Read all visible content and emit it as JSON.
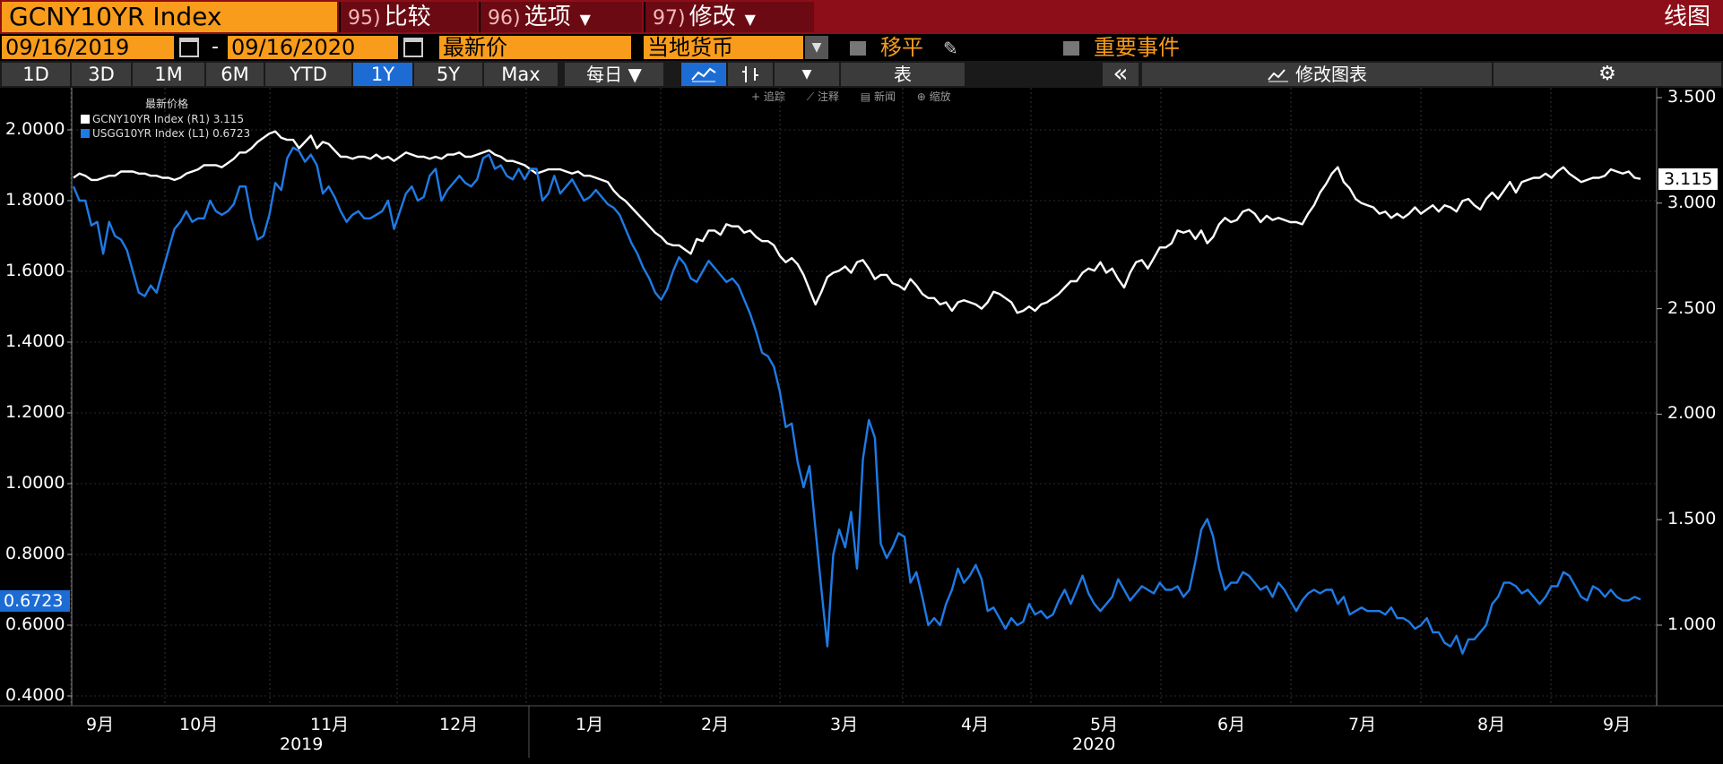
{
  "header": {
    "ticker": "GCNY10YR Index",
    "menus": [
      {
        "num": "95)",
        "label": "比较",
        "caret": ""
      },
      {
        "num": "96)",
        "label": "选项",
        "caret": "▼"
      },
      {
        "num": "97)",
        "label": "修改",
        "caret": "▼"
      }
    ],
    "view": "线图"
  },
  "controls": {
    "start_date": "09/16/2019",
    "dash": "-",
    "end_date": "09/16/2020",
    "field": "最新价",
    "currency": "当地货币",
    "shift": "移平",
    "events": "重要事件"
  },
  "toolbar": {
    "ranges": [
      "1D",
      "3D",
      "1M",
      "6M",
      "YTD",
      "1Y",
      "5Y",
      "Max"
    ],
    "active_range": "1Y",
    "period": "每日 ▼",
    "table": "表",
    "collapse": "«",
    "edit_chart": "修改图表",
    "mini_tools": [
      "追踪",
      "注释",
      "新闻",
      "缩放"
    ]
  },
  "legend": {
    "title": "最新价格",
    "items": [
      {
        "label": "GCNY10YR Index  (R1) 3.115",
        "color": "#ffffff"
      },
      {
        "label": "USGG10YR Index  (L1) 0.6723",
        "color": "#1e7be6"
      }
    ]
  },
  "colors": {
    "gcny": "#ffffff",
    "usgg": "#1e7be6",
    "accent": "#f99c1b",
    "header": "#8d0d18"
  },
  "chart_data": {
    "type": "line",
    "x_labels": [
      "9月",
      "10月",
      "11月",
      "12月",
      "1月",
      "2月",
      "3月",
      "4月",
      "5月",
      "6月",
      "7月",
      "8月",
      "9月"
    ],
    "year_labels": [
      "2019",
      "2020"
    ],
    "left_axis": {
      "ticks": [
        "2.0000",
        "1.8000",
        "1.6000",
        "1.4000",
        "1.2000",
        "1.0000",
        "0.8000",
        "0.6000",
        "0.4000"
      ],
      "range": [
        0.38,
        2.1
      ]
    },
    "right_axis": {
      "ticks": [
        "3.500",
        "3.000",
        "2.500",
        "2.000",
        "1.500",
        "1.000"
      ],
      "range": [
        0.75,
        3.55
      ]
    },
    "last_values": {
      "gcny": "3.115",
      "usgg": "0.6723"
    },
    "series": [
      {
        "name": "GCNY10YR Index",
        "axis": "right",
        "values": [
          3.12,
          3.14,
          3.13,
          3.11,
          3.11,
          3.12,
          3.13,
          3.13,
          3.15,
          3.15,
          3.15,
          3.14,
          3.14,
          3.13,
          3.13,
          3.12,
          3.12,
          3.11,
          3.12,
          3.14,
          3.15,
          3.16,
          3.18,
          3.18,
          3.18,
          3.17,
          3.19,
          3.21,
          3.24,
          3.24,
          3.26,
          3.29,
          3.31,
          3.33,
          3.34,
          3.31,
          3.3,
          3.3,
          3.26,
          3.29,
          3.32,
          3.26,
          3.29,
          3.28,
          3.25,
          3.22,
          3.22,
          3.21,
          3.22,
          3.22,
          3.21,
          3.23,
          3.21,
          3.22,
          3.2,
          3.22,
          3.24,
          3.23,
          3.22,
          3.22,
          3.21,
          3.22,
          3.21,
          3.23,
          3.23,
          3.24,
          3.22,
          3.22,
          3.23,
          3.24,
          3.25,
          3.23,
          3.22,
          3.2,
          3.2,
          3.19,
          3.18,
          3.16,
          3.14,
          3.15,
          3.16,
          3.16,
          3.16,
          3.15,
          3.14,
          3.15,
          3.13,
          3.13,
          3.12,
          3.11,
          3.1,
          3.06,
          3.03,
          3.01,
          2.98,
          2.95,
          2.92,
          2.89,
          2.86,
          2.84,
          2.81,
          2.8,
          2.8,
          2.78,
          2.76,
          2.83,
          2.82,
          2.87,
          2.87,
          2.85,
          2.9,
          2.89,
          2.89,
          2.86,
          2.87,
          2.84,
          2.82,
          2.82,
          2.8,
          2.75,
          2.72,
          2.74,
          2.71,
          2.66,
          2.59,
          2.52,
          2.58,
          2.65,
          2.67,
          2.68,
          2.7,
          2.67,
          2.72,
          2.73,
          2.69,
          2.64,
          2.66,
          2.66,
          2.62,
          2.61,
          2.59,
          2.64,
          2.61,
          2.57,
          2.55,
          2.55,
          2.52,
          2.53,
          2.49,
          2.53,
          2.54,
          2.53,
          2.52,
          2.5,
          2.53,
          2.58,
          2.57,
          2.55,
          2.53,
          2.48,
          2.49,
          2.51,
          2.49,
          2.52,
          2.53,
          2.55,
          2.57,
          2.6,
          2.63,
          2.63,
          2.67,
          2.69,
          2.68,
          2.72,
          2.67,
          2.69,
          2.64,
          2.6,
          2.67,
          2.72,
          2.73,
          2.69,
          2.74,
          2.79,
          2.79,
          2.81,
          2.87,
          2.86,
          2.87,
          2.83,
          2.87,
          2.81,
          2.84,
          2.9,
          2.93,
          2.91,
          2.92,
          2.96,
          2.97,
          2.95,
          2.91,
          2.94,
          2.92,
          2.93,
          2.92,
          2.91,
          2.91,
          2.9,
          2.95,
          2.99,
          3.05,
          3.09,
          3.14,
          3.17,
          3.1,
          3.07,
          3.02,
          3.0,
          2.99,
          2.98,
          2.95,
          2.96,
          2.93,
          2.95,
          2.93,
          2.95,
          2.98,
          2.95,
          2.97,
          2.99,
          2.96,
          2.99,
          2.98,
          2.96,
          3.01,
          3.02,
          2.99,
          2.97,
          3.02,
          3.05,
          3.02,
          3.06,
          3.1,
          3.05,
          3.1,
          3.11,
          3.12,
          3.12,
          3.14,
          3.12,
          3.15,
          3.17,
          3.14,
          3.12,
          3.1,
          3.11,
          3.12,
          3.12,
          3.13,
          3.16,
          3.15,
          3.14,
          3.15,
          3.12,
          3.115
        ]
      },
      {
        "name": "USGG10YR Index",
        "axis": "left",
        "values": [
          1.84,
          1.8,
          1.8,
          1.73,
          1.74,
          1.65,
          1.74,
          1.7,
          1.69,
          1.66,
          1.6,
          1.54,
          1.53,
          1.56,
          1.54,
          1.6,
          1.66,
          1.72,
          1.74,
          1.77,
          1.74,
          1.75,
          1.75,
          1.8,
          1.77,
          1.76,
          1.77,
          1.79,
          1.84,
          1.84,
          1.75,
          1.69,
          1.7,
          1.76,
          1.85,
          1.83,
          1.92,
          1.95,
          1.94,
          1.91,
          1.93,
          1.9,
          1.82,
          1.84,
          1.81,
          1.77,
          1.74,
          1.76,
          1.77,
          1.75,
          1.75,
          1.76,
          1.77,
          1.8,
          1.72,
          1.77,
          1.82,
          1.84,
          1.8,
          1.81,
          1.87,
          1.89,
          1.8,
          1.83,
          1.85,
          1.87,
          1.85,
          1.84,
          1.86,
          1.92,
          1.93,
          1.89,
          1.9,
          1.87,
          1.86,
          1.89,
          1.86,
          1.89,
          1.89,
          1.8,
          1.82,
          1.87,
          1.82,
          1.84,
          1.86,
          1.83,
          1.8,
          1.81,
          1.83,
          1.81,
          1.79,
          1.78,
          1.76,
          1.72,
          1.68,
          1.65,
          1.61,
          1.58,
          1.54,
          1.52,
          1.55,
          1.6,
          1.64,
          1.62,
          1.58,
          1.57,
          1.6,
          1.63,
          1.61,
          1.59,
          1.57,
          1.58,
          1.56,
          1.52,
          1.48,
          1.43,
          1.37,
          1.36,
          1.33,
          1.26,
          1.16,
          1.17,
          1.06,
          0.99,
          1.05,
          0.87,
          0.7,
          0.54,
          0.8,
          0.87,
          0.82,
          0.92,
          0.76,
          1.07,
          1.18,
          1.13,
          0.83,
          0.79,
          0.82,
          0.86,
          0.85,
          0.72,
          0.75,
          0.68,
          0.6,
          0.62,
          0.6,
          0.66,
          0.7,
          0.76,
          0.72,
          0.74,
          0.77,
          0.73,
          0.64,
          0.65,
          0.62,
          0.59,
          0.62,
          0.6,
          0.61,
          0.66,
          0.63,
          0.64,
          0.62,
          0.63,
          0.67,
          0.7,
          0.66,
          0.7,
          0.74,
          0.69,
          0.66,
          0.64,
          0.66,
          0.68,
          0.73,
          0.7,
          0.67,
          0.69,
          0.71,
          0.7,
          0.69,
          0.72,
          0.7,
          0.7,
          0.71,
          0.68,
          0.7,
          0.78,
          0.87,
          0.9,
          0.85,
          0.76,
          0.7,
          0.72,
          0.72,
          0.75,
          0.74,
          0.72,
          0.7,
          0.71,
          0.68,
          0.72,
          0.7,
          0.67,
          0.64,
          0.67,
          0.69,
          0.7,
          0.69,
          0.7,
          0.7,
          0.66,
          0.68,
          0.63,
          0.64,
          0.65,
          0.64,
          0.64,
          0.64,
          0.63,
          0.65,
          0.62,
          0.62,
          0.61,
          0.59,
          0.6,
          0.62,
          0.58,
          0.58,
          0.55,
          0.54,
          0.57,
          0.52,
          0.56,
          0.56,
          0.58,
          0.6,
          0.66,
          0.68,
          0.72,
          0.72,
          0.71,
          0.69,
          0.7,
          0.68,
          0.66,
          0.68,
          0.71,
          0.71,
          0.75,
          0.74,
          0.71,
          0.68,
          0.67,
          0.71,
          0.7,
          0.68,
          0.7,
          0.68,
          0.67,
          0.67,
          0.68,
          0.6723
        ]
      }
    ]
  }
}
